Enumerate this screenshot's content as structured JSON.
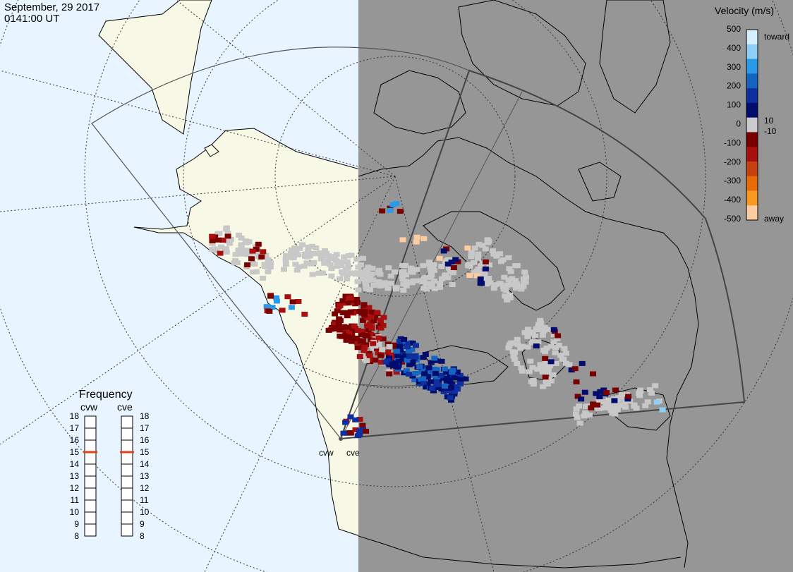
{
  "header": {
    "date": "September, 29 2017",
    "time": "0141:00 UT"
  },
  "radars": [
    {
      "code": "cvw"
    },
    {
      "code": "cve"
    }
  ],
  "velocity_legend": {
    "title": "Velocity (m/s)",
    "toward_label": "toward",
    "away_label": "away",
    "tick_labels": [
      "500",
      "400",
      "300",
      "200",
      "100",
      "0",
      "-100",
      "-200",
      "-300",
      "-400",
      "-500"
    ],
    "threshold_labels": [
      "10",
      "-10"
    ],
    "colors": [
      "#d6efff",
      "#8ed0f5",
      "#2a9ae8",
      "#1565c0",
      "#0d2fa0",
      "#000c6e",
      "#cccccc",
      "#7a0000",
      "#a80f0f",
      "#c8400f",
      "#e86a08",
      "#f99a20",
      "#fdcca0"
    ]
  },
  "frequency_panel": {
    "title": "Frequency",
    "columns": [
      {
        "label": "cvw",
        "selected_mhz": 15
      },
      {
        "label": "cve",
        "selected_mhz": 15
      }
    ],
    "scale_labels": [
      "18",
      "17",
      "16",
      "15",
      "14",
      "13",
      "12",
      "11",
      "10",
      "9",
      "8"
    ]
  },
  "colors": {
    "ocean": "#e8f4ff",
    "land": "#f8f8e6",
    "night": "#969696",
    "ground_scatter": "#c8c8c8",
    "frequency_marker": "#e0401a"
  }
}
